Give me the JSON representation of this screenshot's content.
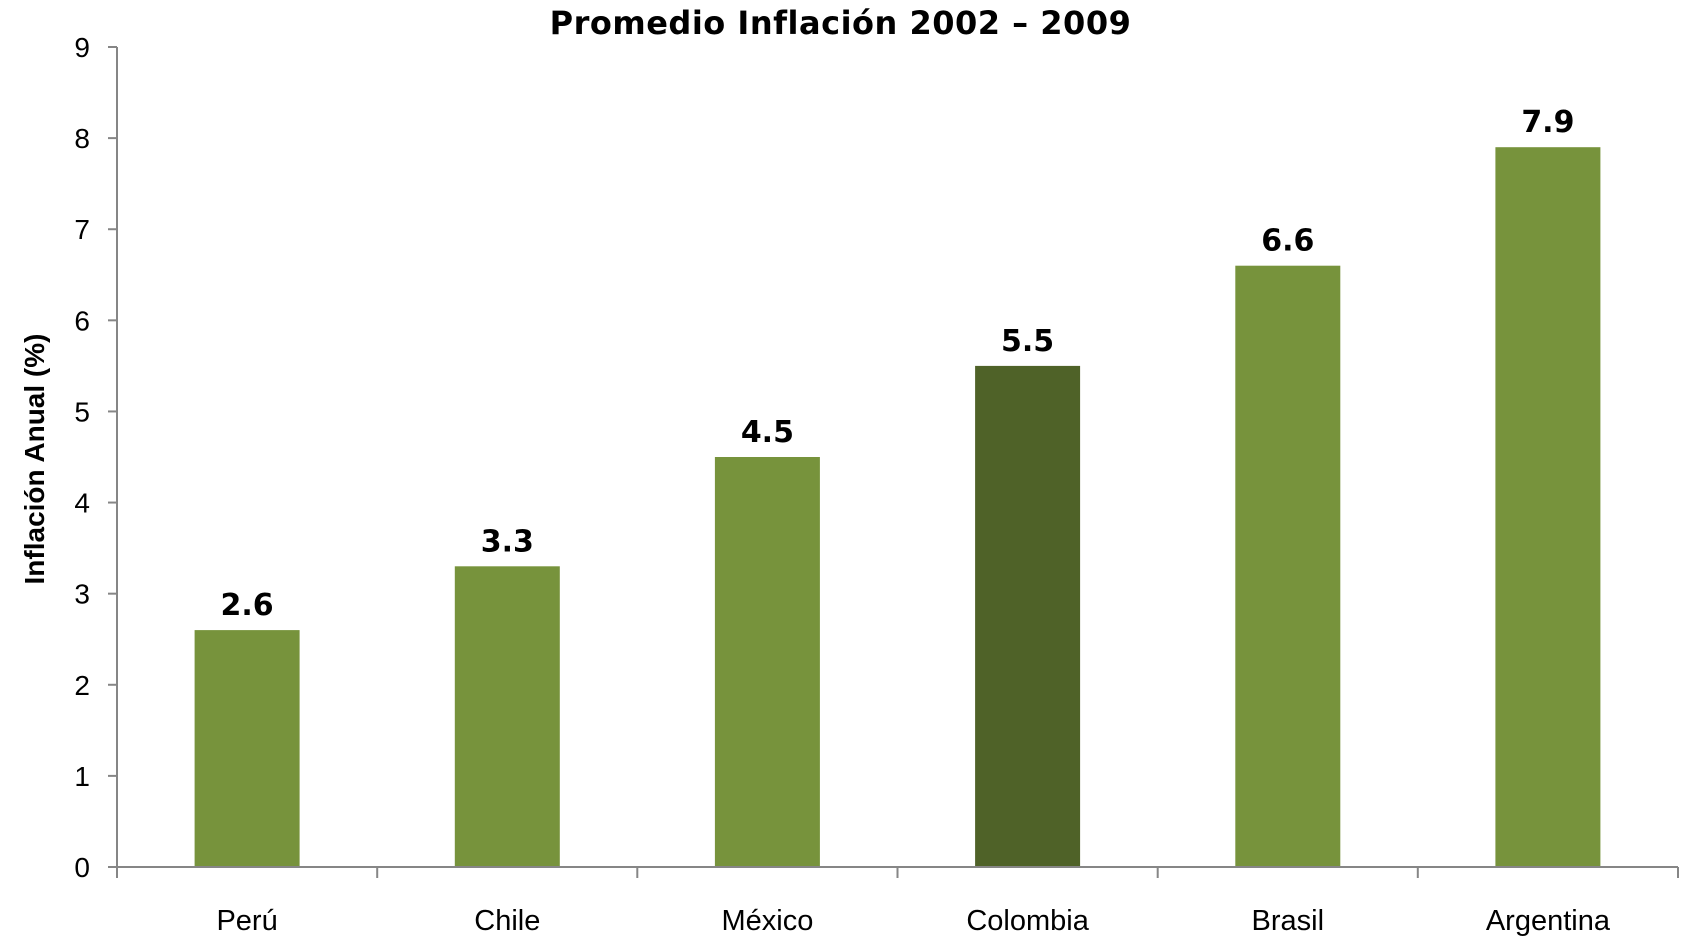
{
  "chart_data": {
    "type": "bar",
    "title": "Promedio Inflación 2002 – 2009",
    "xlabel": "",
    "ylabel": "Inflación Anual (%)",
    "categories": [
      "Perú",
      "Chile",
      "México",
      "Colombia",
      "Brasil",
      "Argentina"
    ],
    "values": [
      2.6,
      3.3,
      4.5,
      5.5,
      6.6,
      7.9
    ],
    "data_labels": [
      "2.6",
      "3.3",
      "4.5",
      "5.5",
      "6.6",
      "7.9"
    ],
    "ylim": [
      0,
      9
    ],
    "yticks": [
      0,
      1,
      2,
      3,
      4,
      5,
      6,
      7,
      8,
      9
    ],
    "grid": false,
    "legend": "none",
    "colors": {
      "bar": "#77933c",
      "highlight": "#4f6228",
      "axis": "#868686"
    },
    "highlight_category": "Colombia"
  }
}
